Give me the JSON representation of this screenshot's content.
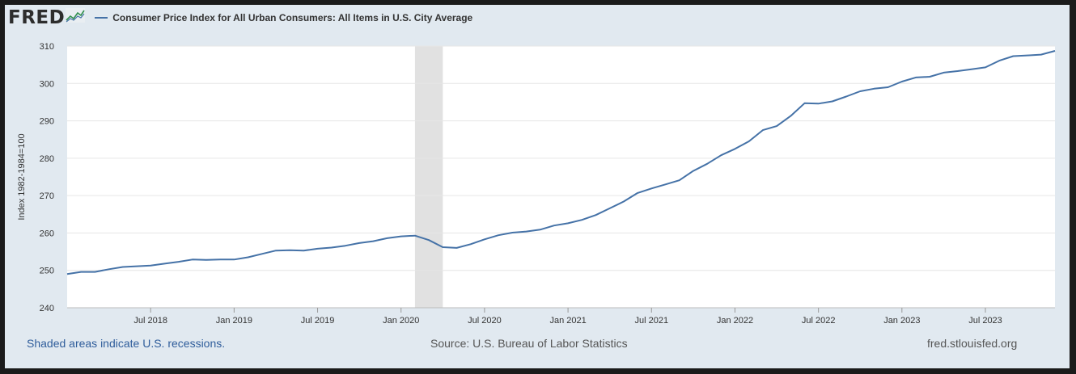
{
  "header": {
    "logo_text": "FRED",
    "legend_label": "Consumer Price Index for All Urban Consumers: All Items in U.S. City Average"
  },
  "footer": {
    "recessions_note": "Shaded areas indicate U.S. recessions.",
    "source": "Source: U.S. Bureau of Labor Statistics",
    "site": "fred.stlouisfed.org"
  },
  "colors": {
    "series": "#4572a7",
    "recession": "#e1e1e1",
    "background": "#e1e9f0",
    "plot": "#ffffff"
  },
  "chart_data": {
    "type": "line",
    "title": "",
    "xlabel": "",
    "ylabel": "Index 1982-1984=100",
    "ylim": [
      240,
      310
    ],
    "yticks": [
      240,
      250,
      260,
      270,
      280,
      290,
      300,
      310
    ],
    "xlim": [
      "2018-01",
      "2023-12"
    ],
    "xticks": [
      {
        "label": "Jul 2018",
        "date": "2018-07"
      },
      {
        "label": "Jan 2019",
        "date": "2019-01"
      },
      {
        "label": "Jul 2019",
        "date": "2019-07"
      },
      {
        "label": "Jan 2020",
        "date": "2020-01"
      },
      {
        "label": "Jul 2020",
        "date": "2020-07"
      },
      {
        "label": "Jan 2021",
        "date": "2021-01"
      },
      {
        "label": "Jul 2021",
        "date": "2021-07"
      },
      {
        "label": "Jan 2022",
        "date": "2022-01"
      },
      {
        "label": "Jul 2022",
        "date": "2022-07"
      },
      {
        "label": "Jan 2023",
        "date": "2023-01"
      },
      {
        "label": "Jul 2023",
        "date": "2023-07"
      }
    ],
    "grid": true,
    "recessions": [
      {
        "start": "2020-02",
        "end": "2020-04"
      }
    ],
    "series": [
      {
        "name": "Consumer Price Index for All Urban Consumers: All Items in U.S. City Average",
        "x": [
          "2018-01",
          "2018-02",
          "2018-03",
          "2018-04",
          "2018-05",
          "2018-06",
          "2018-07",
          "2018-08",
          "2018-09",
          "2018-10",
          "2018-11",
          "2018-12",
          "2019-01",
          "2019-02",
          "2019-03",
          "2019-04",
          "2019-05",
          "2019-06",
          "2019-07",
          "2019-08",
          "2019-09",
          "2019-10",
          "2019-11",
          "2019-12",
          "2020-01",
          "2020-02",
          "2020-03",
          "2020-04",
          "2020-05",
          "2020-06",
          "2020-07",
          "2020-08",
          "2020-09",
          "2020-10",
          "2020-11",
          "2020-12",
          "2021-01",
          "2021-02",
          "2021-03",
          "2021-04",
          "2021-05",
          "2021-06",
          "2021-07",
          "2021-08",
          "2021-09",
          "2021-10",
          "2021-11",
          "2021-12",
          "2022-01",
          "2022-02",
          "2022-03",
          "2022-04",
          "2022-05",
          "2022-06",
          "2022-07",
          "2022-08",
          "2022-09",
          "2022-10",
          "2022-11",
          "2022-12",
          "2023-01",
          "2023-02",
          "2023-03",
          "2023-04",
          "2023-05",
          "2023-06",
          "2023-07",
          "2023-08",
          "2023-09",
          "2023-10",
          "2023-11",
          "2023-12"
        ],
        "values": [
          249.0,
          249.6,
          249.6,
          250.3,
          250.9,
          251.1,
          251.3,
          251.8,
          252.3,
          252.9,
          252.8,
          252.9,
          252.9,
          253.5,
          254.4,
          255.3,
          255.4,
          255.3,
          255.8,
          256.1,
          256.6,
          257.3,
          257.8,
          258.6,
          259.1,
          259.3,
          258.1,
          256.2,
          256.0,
          257.0,
          258.3,
          259.4,
          260.1,
          260.4,
          260.9,
          262.0,
          262.6,
          263.5,
          264.8,
          266.6,
          268.4,
          270.7,
          271.9,
          273.0,
          274.1,
          276.6,
          278.5,
          280.8,
          282.5,
          284.5,
          287.5,
          288.6,
          291.3,
          294.7,
          294.6,
          295.2,
          296.5,
          297.9,
          298.6,
          298.99,
          300.5,
          301.6,
          301.8,
          302.9,
          303.3,
          303.8,
          304.3,
          306.1,
          307.3,
          307.5,
          307.7,
          308.7
        ]
      }
    ]
  }
}
